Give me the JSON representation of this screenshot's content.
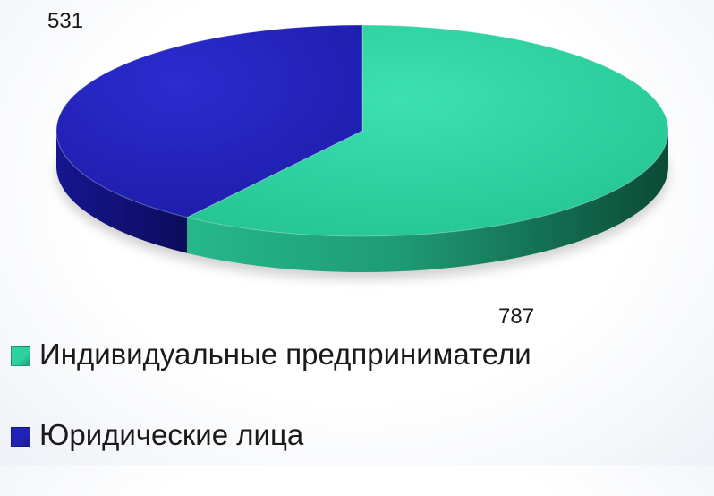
{
  "chart_data": {
    "type": "pie",
    "style": "3d",
    "title": "",
    "legend_position": "bottom-left",
    "categories": [
      "Индивидуальные предприниматели",
      "Юридические лица"
    ],
    "values": [
      787,
      531
    ],
    "data_labels": [
      "787",
      "531"
    ],
    "colors": [
      "#2ed1a0",
      "#2222b8"
    ]
  }
}
